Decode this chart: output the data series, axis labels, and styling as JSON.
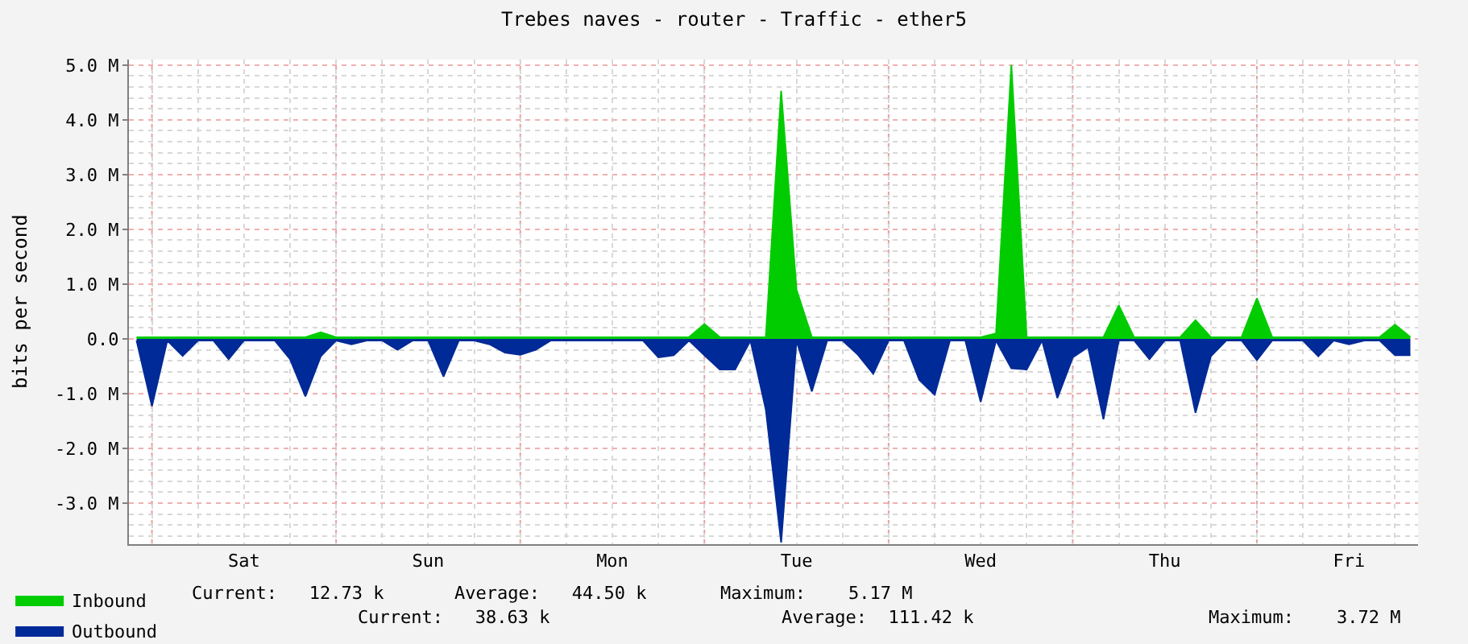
{
  "chart_data": {
    "type": "area",
    "title": "Trebes naves - router - Traffic - ether5",
    "ylabel": "bits per second",
    "categories": [
      null,
      null,
      null,
      null,
      null,
      null,
      null,
      "Sat",
      null,
      null,
      null,
      null,
      null,
      null,
      null,
      null,
      null,
      null,
      null,
      "Sun",
      null,
      null,
      null,
      null,
      null,
      null,
      null,
      null,
      null,
      null,
      null,
      "Mon",
      null,
      null,
      null,
      null,
      null,
      null,
      null,
      null,
      null,
      null,
      null,
      "Tue",
      null,
      null,
      null,
      null,
      null,
      null,
      null,
      null,
      null,
      null,
      null,
      "Wed",
      null,
      null,
      null,
      null,
      null,
      null,
      null,
      null,
      null,
      null,
      null,
      "Thu",
      null,
      null,
      null,
      null,
      null,
      null,
      null,
      null,
      null,
      null,
      null,
      "Fri",
      null,
      null,
      null,
      null
    ],
    "ylim": [
      -3.75,
      5.1
    ],
    "yticks": [
      {
        "value": -3,
        "label": "-3.0 M"
      },
      {
        "value": -2,
        "label": "-2.0 M"
      },
      {
        "value": -1,
        "label": "-1.0 M"
      },
      {
        "value": 0,
        "label": "0.0"
      },
      {
        "value": 1,
        "label": "1.0 M"
      },
      {
        "value": 2,
        "label": "2.0 M"
      },
      {
        "value": 3,
        "label": "3.0 M"
      },
      {
        "value": 4,
        "label": "4.0 M"
      },
      {
        "value": 5,
        "label": "5.0 M"
      }
    ],
    "grid": true,
    "legend": "bottom left",
    "series": [
      {
        "name": "Inbound",
        "color": "#00cc00",
        "values": [
          0.03,
          0.03,
          0.03,
          0.03,
          0.03,
          0.03,
          0.03,
          0.03,
          0.03,
          0.03,
          0.03,
          0.03,
          0.12,
          0.03,
          0.03,
          0.03,
          0.03,
          0.03,
          0.03,
          0.03,
          0.03,
          0.03,
          0.03,
          0.03,
          0.03,
          0.03,
          0.03,
          0.03,
          0.03,
          0.03,
          0.03,
          0.03,
          0.03,
          0.03,
          0.03,
          0.03,
          0.03,
          0.27,
          0.03,
          0.03,
          0.03,
          0.03,
          4.53,
          0.9,
          0.03,
          0.03,
          0.03,
          0.03,
          0.03,
          0.03,
          0.03,
          0.03,
          0.03,
          0.03,
          0.03,
          0.03,
          0.1,
          5.0,
          0.03,
          0.03,
          0.03,
          0.03,
          0.03,
          0.03,
          0.61,
          0.03,
          0.03,
          0.03,
          0.03,
          0.34,
          0.03,
          0.03,
          0.03,
          0.74,
          0.03,
          0.03,
          0.03,
          0.03,
          0.03,
          0.03,
          0.03,
          0.03,
          0.26,
          0.03
        ]
      },
      {
        "name": "Outbound",
        "color": "#002a97",
        "values": [
          -0.03,
          -1.23,
          -0.03,
          -0.31,
          -0.03,
          -0.03,
          -0.37,
          -0.03,
          -0.03,
          -0.03,
          -0.37,
          -1.05,
          -0.32,
          -0.03,
          -0.1,
          -0.03,
          -0.03,
          -0.2,
          -0.03,
          -0.03,
          -0.69,
          -0.03,
          -0.03,
          -0.1,
          -0.25,
          -0.29,
          -0.2,
          -0.03,
          -0.03,
          -0.03,
          -0.03,
          -0.03,
          -0.03,
          -0.03,
          -0.34,
          -0.3,
          -0.03,
          -0.3,
          -0.56,
          -0.56,
          -0.03,
          -1.29,
          -3.72,
          -0.03,
          -0.96,
          -0.03,
          -0.03,
          -0.29,
          -0.64,
          -0.03,
          -0.03,
          -0.75,
          -1.02,
          -0.03,
          -0.03,
          -1.15,
          -0.03,
          -0.54,
          -0.56,
          -0.03,
          -1.08,
          -0.34,
          -0.15,
          -1.47,
          -0.03,
          -0.03,
          -0.37,
          -0.03,
          -0.03,
          -1.35,
          -0.32,
          -0.03,
          -0.03,
          -0.39,
          -0.03,
          -0.03,
          -0.03,
          -0.32,
          -0.03,
          -0.1,
          -0.03,
          -0.03,
          -0.3,
          -0.3
        ]
      }
    ],
    "annotations": [
      "Current:   12.73 k",
      "Average:   44.50 k",
      "Maximum:    5.17 M",
      "Current:   38.63 k",
      "Average:  111.42 k",
      "Maximum:    3.72 M"
    ]
  }
}
